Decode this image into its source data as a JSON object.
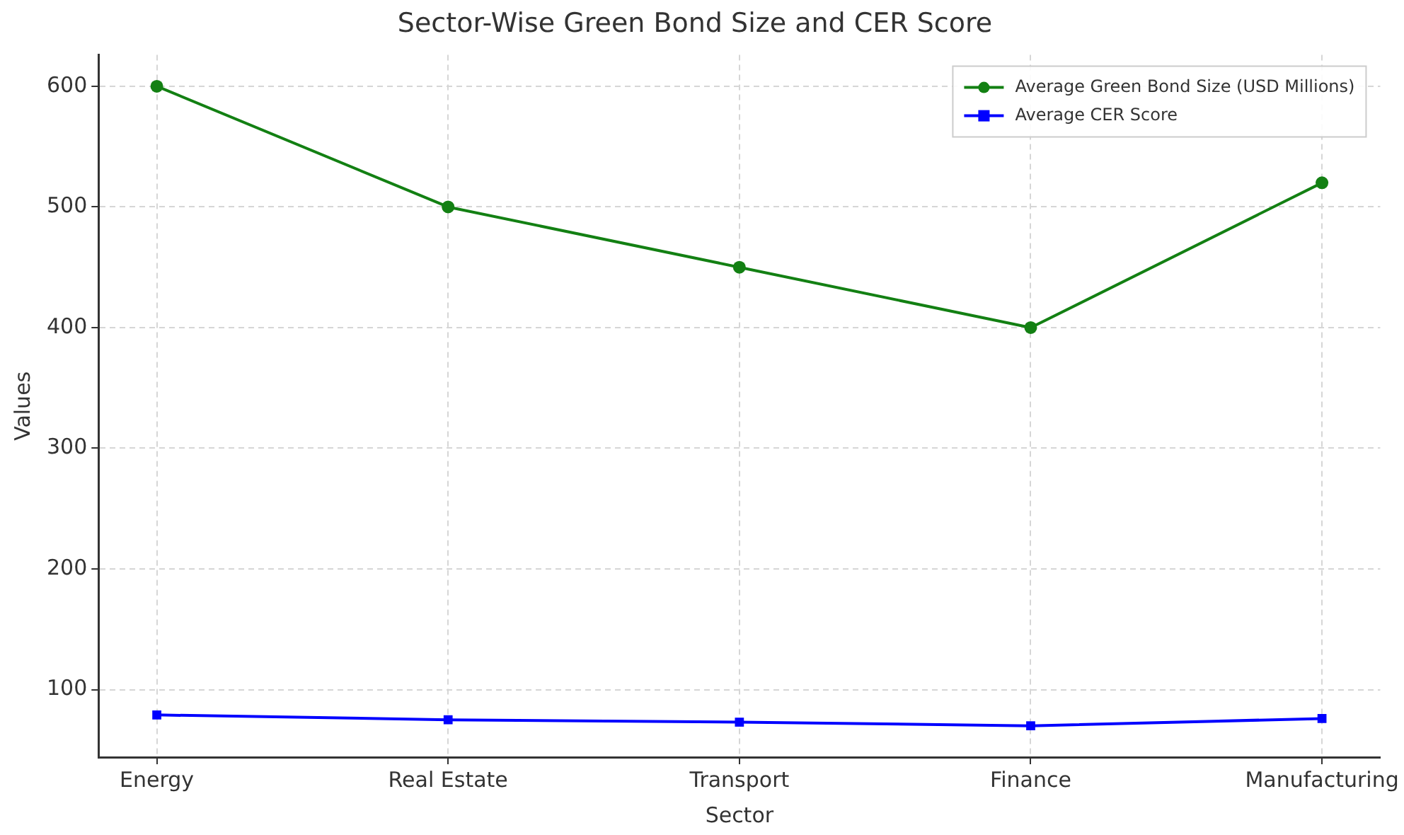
{
  "chart_data": {
    "type": "line",
    "title": "Sector-Wise Green Bond Size and CER Score",
    "xlabel": "Sector",
    "ylabel": "Values",
    "categories": [
      "Energy",
      "Real Estate",
      "Transport",
      "Finance",
      "Manufacturing"
    ],
    "series": [
      {
        "name": "Average Green Bond Size (USD Millions)",
        "color": "#138013",
        "marker": "circle",
        "values": [
          600,
          500,
          450,
          400,
          520
        ]
      },
      {
        "name": "Average CER Score",
        "color": "#0000ff",
        "marker": "square",
        "values": [
          79,
          75,
          73,
          70,
          76
        ]
      }
    ],
    "ylim": [
      44,
      626
    ],
    "yticks": [
      100,
      200,
      300,
      400,
      500,
      600
    ],
    "grid": true,
    "legend": "top right",
    "line_style": "solid"
  }
}
